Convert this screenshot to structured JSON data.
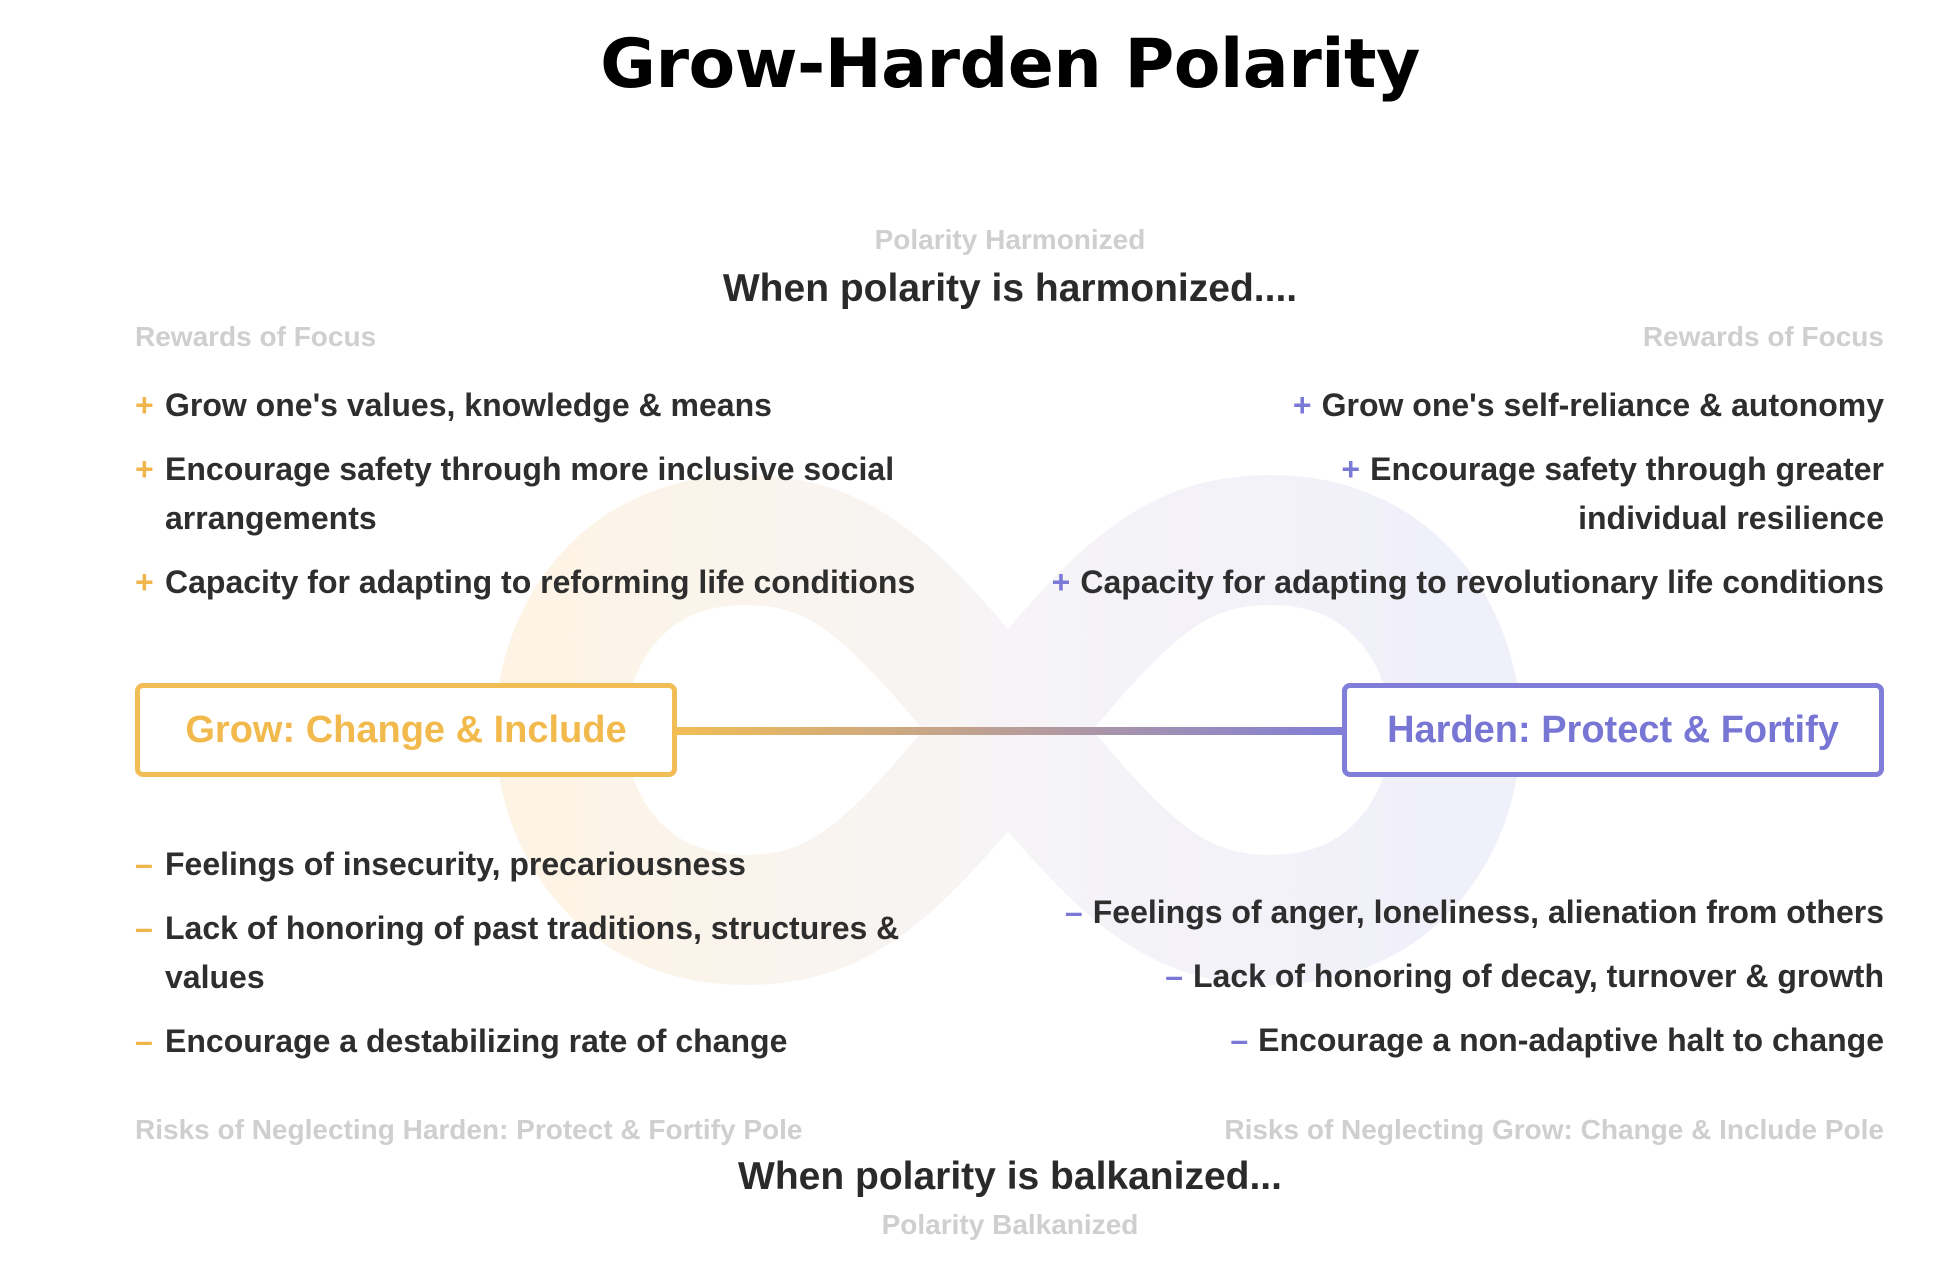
{
  "title": "Grow-Harden Polarity",
  "top": {
    "label": "Polarity Harmonized",
    "heading": "When polarity is harmonized....",
    "left_label": "Rewards of Focus",
    "right_label": "Rewards of Focus"
  },
  "poles": {
    "left": "Grow: Change & Include",
    "right": "Harden: Protect & Fortify"
  },
  "symbols": {
    "plus": "+",
    "minus": "–"
  },
  "colors": {
    "grow": "#f2bd55",
    "harden": "#807ed8"
  },
  "upsides": {
    "left": [
      "Grow one's values, knowledge & means",
      "Encourage safety through more inclusive social arrangements",
      "Capacity for adapting to reforming life conditions"
    ],
    "right": [
      "Grow one's self-reliance & autonomy",
      "Encourage safety through greater individual resilience",
      "Capacity for adapting to revolutionary life conditions"
    ]
  },
  "downsides": {
    "left": [
      "Feelings of insecurity, precariousness",
      "Lack of honoring of past traditions, structures & values",
      "Encourage a destabilizing rate of change"
    ],
    "right": [
      "Feelings of anger, loneliness, alienation from others",
      "Lack of honoring of decay, turnover & growth",
      "Encourage a non-adaptive halt to change"
    ]
  },
  "bottom": {
    "left_label": "Risks of Neglecting Harden: Protect & Fortify Pole",
    "right_label": "Risks of Neglecting Grow: Change & Include Pole",
    "heading": "When polarity is balkanized...",
    "label": "Polarity Balkanized"
  }
}
